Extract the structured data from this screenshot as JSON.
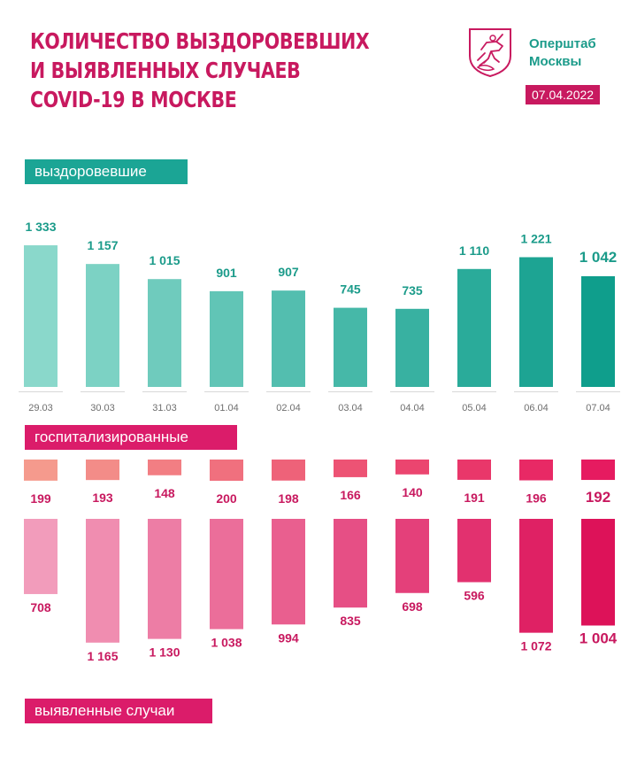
{
  "header": {
    "title_lines": [
      "Количество выздоровевших",
      "и выявленных случаев",
      "COVID-19 в Москве"
    ],
    "org_lines": [
      "Оперштаб",
      "Москвы"
    ],
    "date": "07.04.2022",
    "logo_icon": "moscow-coat-of-arms-icon"
  },
  "labels": {
    "recovered": "выздоровевшие",
    "hospitalized": "госпитализированные",
    "cases": "выявленные случаи"
  },
  "colors": {
    "teal_light": "#8ad8cb",
    "teal_dark": "#0f9e8c",
    "pink_light": "#f29cbb",
    "pink_dark": "#dd1259",
    "salmon_light": "#f59a8d",
    "hosp_dark": "#e61b60",
    "text_pink": "#c8195f",
    "text_teal": "#1b9b8a"
  },
  "chart_data": [
    {
      "type": "bar",
      "name": "выздоровевшие",
      "categories": [
        "29.03",
        "30.03",
        "31.03",
        "01.04",
        "02.04",
        "03.04",
        "04.04",
        "05.04",
        "06.04",
        "07.04"
      ],
      "values": [
        1333,
        1157,
        1015,
        901,
        907,
        745,
        735,
        1110,
        1221,
        1042
      ],
      "value_labels": [
        "1 333",
        "1 157",
        "1 015",
        "901",
        "907",
        "745",
        "735",
        "1 110",
        "1 221",
        "1 042"
      ]
    },
    {
      "type": "bar",
      "name": "госпитализированные",
      "categories": [
        "29.03",
        "30.03",
        "31.03",
        "01.04",
        "02.04",
        "03.04",
        "04.04",
        "05.04",
        "06.04",
        "07.04"
      ],
      "values": [
        199,
        193,
        148,
        200,
        198,
        166,
        140,
        191,
        196,
        192
      ],
      "value_labels": [
        "199",
        "193",
        "148",
        "200",
        "198",
        "166",
        "140",
        "191",
        "196",
        "192"
      ]
    },
    {
      "type": "bar",
      "name": "выявленные случаи",
      "categories": [
        "29.03",
        "30.03",
        "31.03",
        "01.04",
        "02.04",
        "03.04",
        "04.04",
        "05.04",
        "06.04",
        "07.04"
      ],
      "values": [
        708,
        1165,
        1130,
        1038,
        994,
        835,
        698,
        596,
        1072,
        1004
      ],
      "value_labels": [
        "708",
        "1 165",
        "1 130",
        "1 038",
        "994",
        "835",
        "698",
        "596",
        "1 072",
        "1 004"
      ]
    }
  ]
}
